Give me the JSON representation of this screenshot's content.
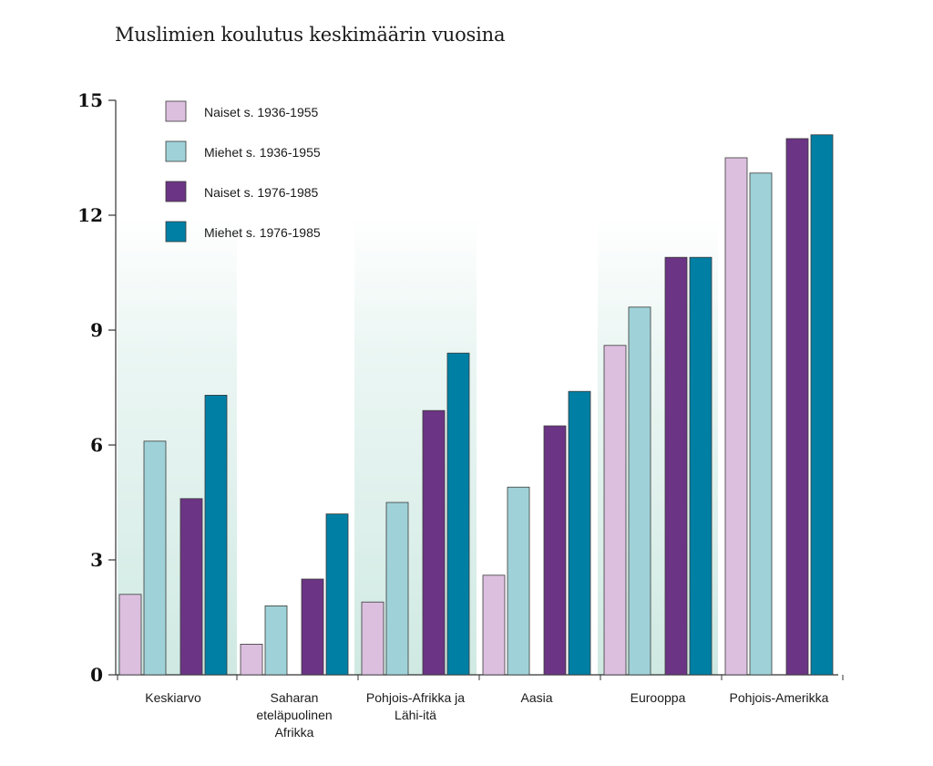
{
  "chart_data": {
    "type": "bar",
    "title": "Muslimien koulutus keskimäärin vuosina",
    "xlabel": "",
    "ylabel": "",
    "ylim": [
      0,
      15
    ],
    "yticks": [
      "0",
      "3",
      "6",
      "9",
      "12",
      "15"
    ],
    "categories": [
      [
        "Keskiarvo"
      ],
      [
        "Saharan",
        "eteläpuolinen",
        "Afrikka"
      ],
      [
        "Pohjois-Afrikka ja",
        "Lähi-itä"
      ],
      [
        "Aasia"
      ],
      [
        "Eurooppa"
      ],
      [
        "Pohjois-Amerikka"
      ]
    ],
    "series": [
      {
        "name": "Naiset s. 1936-1955",
        "color": "#dcbfdf",
        "values": [
          2.1,
          0.8,
          1.9,
          2.6,
          8.6,
          13.5
        ]
      },
      {
        "name": "Miehet s. 1936-1955",
        "color": "#9fd2d8",
        "values": [
          6.1,
          1.8,
          4.5,
          4.9,
          9.6,
          13.1
        ]
      },
      {
        "name": "Naiset s. 1976-1985",
        "color": "#6b3484",
        "values": [
          4.6,
          2.5,
          6.9,
          6.5,
          10.9,
          14.0
        ]
      },
      {
        "name": "Miehet s. 1976-1985",
        "color": "#007fa4",
        "values": [
          7.3,
          4.2,
          8.4,
          7.4,
          10.9,
          14.1
        ]
      }
    ],
    "legend_position": "top-left",
    "grid": false,
    "background_bands": true
  }
}
